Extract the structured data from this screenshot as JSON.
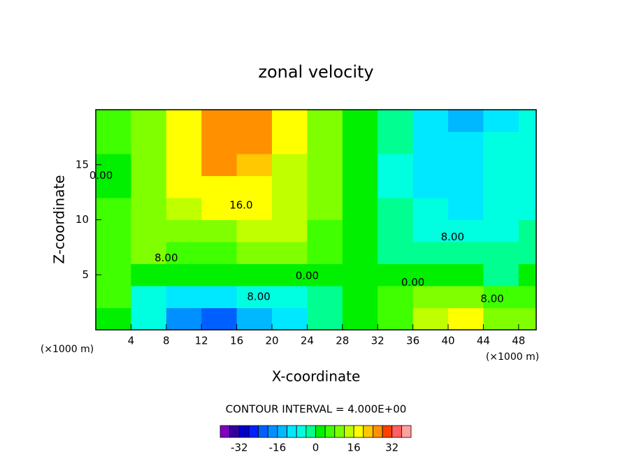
{
  "chart_data": {
    "type": "contour",
    "title": "zonal velocity",
    "xlabel": "X-coordinate",
    "ylabel": "Z-coordinate",
    "x_unit_label": "(×1000 m)",
    "y_unit_label": "(×1000 m)",
    "contour_interval_label": "CONTOUR INTERVAL = 4.000E+00",
    "xlim": [
      0,
      50
    ],
    "ylim": [
      0,
      20
    ],
    "xticks": [
      4,
      8,
      12,
      16,
      20,
      24,
      28,
      32,
      36,
      40,
      44,
      48
    ],
    "yticks": [
      5,
      10,
      15
    ],
    "x": [
      2,
      6,
      10,
      14,
      18,
      22,
      26,
      30,
      34,
      38,
      42,
      46,
      50
    ],
    "y": [
      1,
      3,
      5,
      7,
      9,
      11,
      13,
      15,
      17,
      19
    ],
    "z": [
      [
        2,
        -8,
        -18,
        -22,
        -16,
        -12,
        -4,
        0,
        4,
        14,
        16,
        10,
        8
      ],
      [
        6,
        -6,
        -10,
        -12,
        -8,
        -6,
        -2,
        0,
        4,
        8,
        10,
        4,
        6
      ],
      [
        4,
        2,
        0,
        0,
        2,
        2,
        0,
        0,
        0,
        2,
        2,
        -2,
        2
      ],
      [
        6,
        8,
        6,
        6,
        10,
        10,
        4,
        0,
        -2,
        -2,
        -4,
        -4,
        -2
      ],
      [
        6,
        10,
        10,
        10,
        12,
        14,
        6,
        0,
        -4,
        -6,
        -8,
        -6,
        -4
      ],
      [
        4,
        10,
        14,
        16,
        18,
        14,
        8,
        0,
        -4,
        -8,
        -10,
        -8,
        -6
      ],
      [
        2,
        10,
        16,
        18,
        18,
        14,
        8,
        2,
        -6,
        -10,
        -12,
        -8,
        -6
      ],
      [
        0,
        8,
        16,
        24,
        22,
        14,
        8,
        2,
        -6,
        -10,
        -10,
        -8,
        -6
      ],
      [
        4,
        10,
        18,
        26,
        24,
        16,
        8,
        2,
        -4,
        -10,
        -12,
        -8,
        -6
      ],
      [
        4,
        10,
        18,
        26,
        24,
        16,
        8,
        2,
        -4,
        -10,
        -14,
        -10,
        -6
      ]
    ],
    "contour_labels": [
      {
        "text": "16.0",
        "x": 16.5,
        "y": 11.3
      },
      {
        "text": "8.00",
        "x": 8,
        "y": 6.5
      },
      {
        "text": "0.00",
        "x": 24,
        "y": 4.9
      },
      {
        "text": "8.00",
        "x": 18.5,
        "y": 3
      },
      {
        "text": "8.00",
        "x": 40.5,
        "y": 8.4
      },
      {
        "text": "0.00",
        "x": 36,
        "y": 4.3
      },
      {
        "text": "8.00",
        "x": 45,
        "y": 2.8
      },
      {
        "text": "0.00",
        "x": 0.6,
        "y": 14
      }
    ],
    "colorbar": {
      "levels": [
        -40,
        -36,
        -32,
        -28,
        -24,
        -20,
        -16,
        -12,
        -8,
        -4,
        0,
        4,
        8,
        12,
        16,
        20,
        24,
        28,
        32,
        36,
        40
      ],
      "colors": [
        "#7f00c0",
        "#3000a0",
        "#0000c8",
        "#0020ff",
        "#0060ff",
        "#0090ff",
        "#00b8ff",
        "#00e8ff",
        "#00ffe0",
        "#00ff90",
        "#00f000",
        "#40ff00",
        "#80ff00",
        "#c0ff00",
        "#ffff00",
        "#ffc800",
        "#ff9000",
        "#ff4000",
        "#ff6060",
        "#ffa0a0"
      ],
      "ticks": [
        -32,
        -16,
        0,
        16,
        32
      ]
    }
  }
}
